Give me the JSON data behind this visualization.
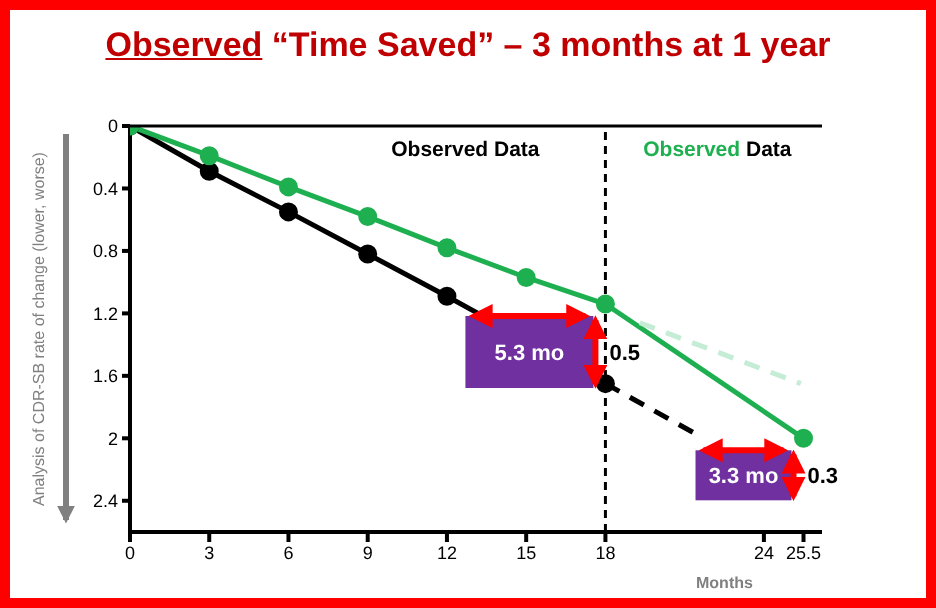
{
  "chart_data": {
    "type": "line",
    "title": "Observed “Time Saved” – 3 months at 1 year",
    "xlabel": "Months",
    "ylabel": "Analysis of CDR-SB rate of change (lower, worse)",
    "series": [
      {
        "color": "#000000",
        "x": [
          0,
          3,
          6,
          9,
          12,
          18
        ],
        "values": [
          0,
          0.29,
          0.55,
          0.82,
          1.09,
          1.65
        ],
        "marker": "circle",
        "line_style": "solid"
      },
      {
        "color": "#000000",
        "x": [
          18,
          21.4
        ],
        "values": [
          1.65,
          1.97
        ],
        "marker": "none",
        "line_style": "dashed"
      },
      {
        "color": "#1eb050",
        "x": [
          0,
          3,
          6,
          9,
          12,
          15,
          18,
          25.5
        ],
        "values": [
          0,
          0.19,
          0.39,
          0.58,
          0.78,
          0.97,
          1.14,
          2.0
        ],
        "marker": "circle",
        "line_style": "solid"
      },
      {
        "color": "#c5ecd5",
        "x": [
          19.3,
          25.4
        ],
        "values": [
          1.26,
          1.65
        ],
        "marker": "none",
        "line_style": "dashed"
      }
    ],
    "xlim": [
      0,
      26.2
    ],
    "xticks": [
      0,
      3,
      6,
      9,
      12,
      15,
      18,
      24,
      25.5
    ],
    "ylim": [
      2.6,
      0
    ],
    "yticks": [
      0,
      0.4,
      0.8,
      1.2,
      1.6,
      2,
      2.4
    ],
    "ref_lines": [
      {
        "axis": "x",
        "value": 18,
        "color": "#000000",
        "line_style": "dashed"
      }
    ],
    "annotations": [
      "Observed Data",
      "Observed Data",
      "0.5",
      "0.3",
      {
        "text": "5.3 mo",
        "x": 18,
        "y": 1.14
      },
      {
        "text": "3.3 mo",
        "x": 25.5,
        "y": 2.0
      }
    ],
    "legend": false
  }
}
